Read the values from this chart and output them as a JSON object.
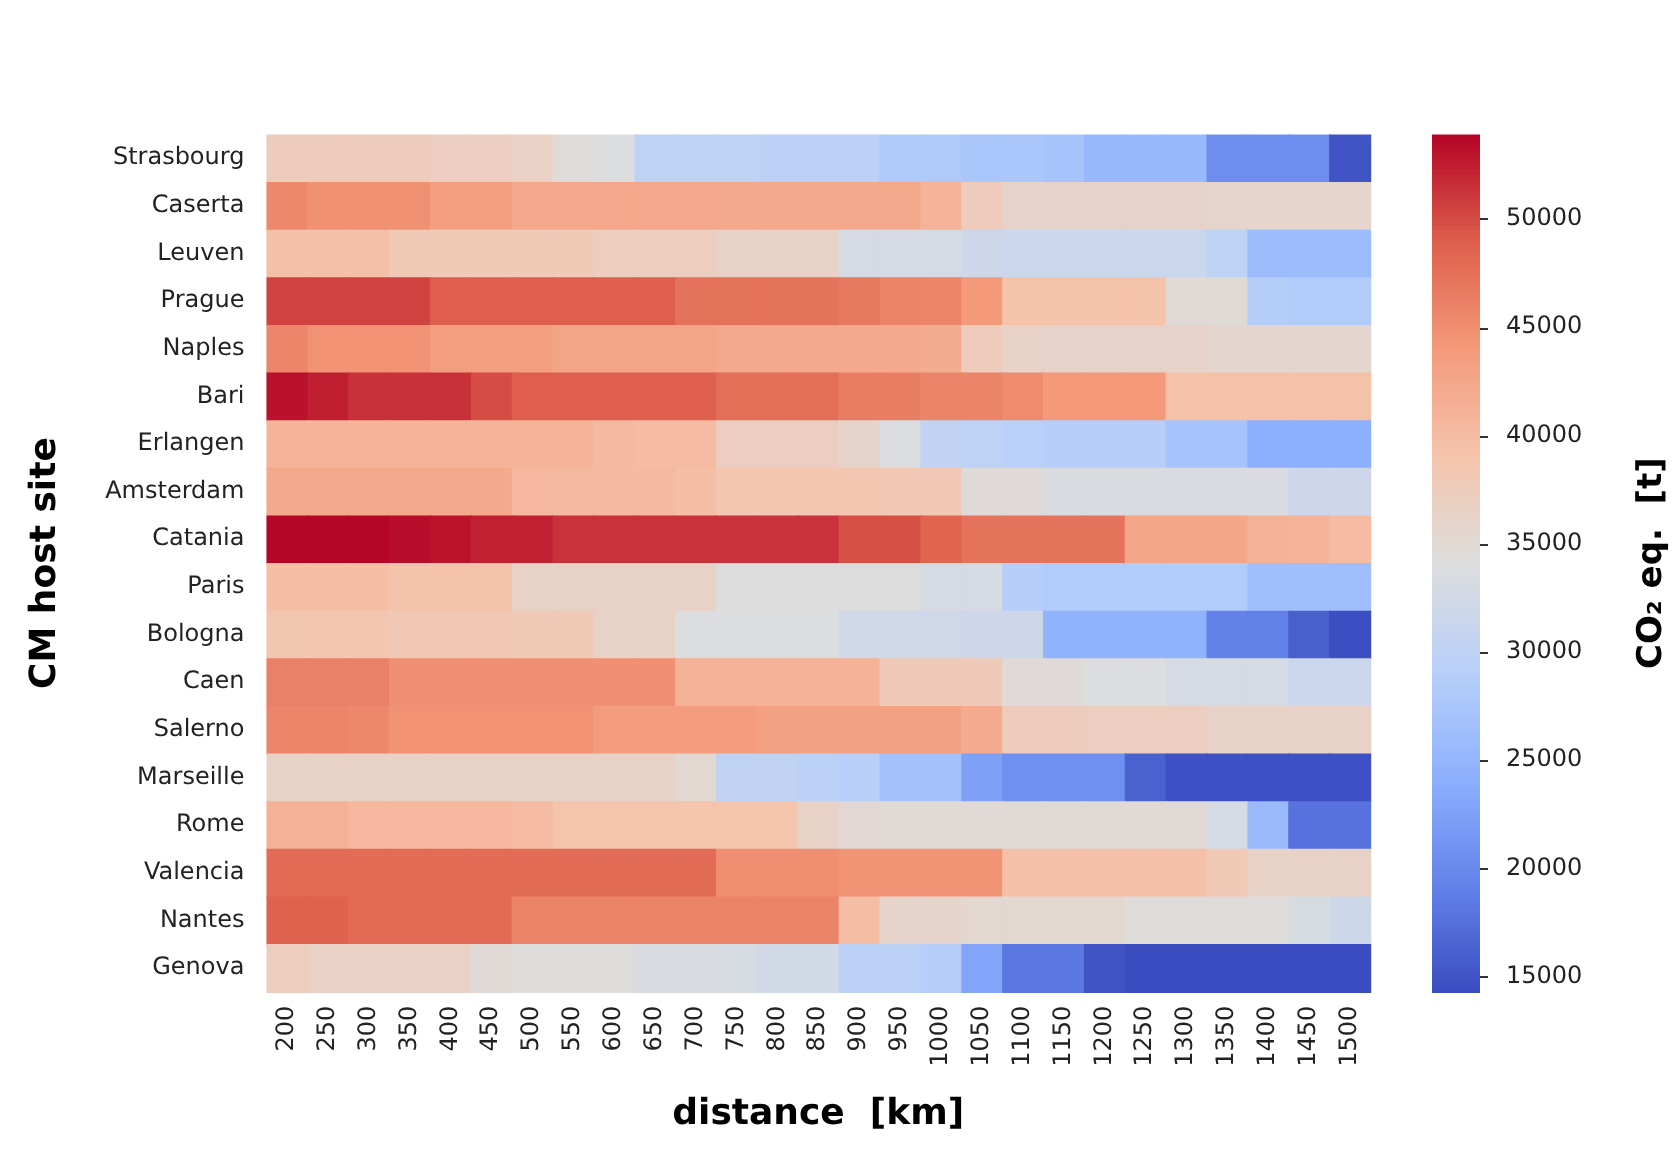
{
  "chart_data": {
    "type": "heatmap",
    "xlabel": "distance  [km]",
    "ylabel": "CM host site",
    "clabel": "CO₂ eq.  [t]",
    "categories": [
      "200",
      "250",
      "300",
      "350",
      "400",
      "450",
      "500",
      "550",
      "600",
      "650",
      "700",
      "750",
      "800",
      "850",
      "900",
      "950",
      "1000",
      "1050",
      "1100",
      "1150",
      "1200",
      "1250",
      "1300",
      "1350",
      "1400",
      "1450",
      "1500"
    ],
    "y_categories": [
      "Strasbourg",
      "Caserta",
      "Leuven",
      "Prague",
      "Naples",
      "Bari",
      "Erlangen",
      "Amsterdam",
      "Catania",
      "Paris",
      "Bologna",
      "Caen",
      "Salerno",
      "Marseille",
      "Rome",
      "Valencia",
      "Nantes",
      "Genova"
    ],
    "clim": [
      14300,
      53900
    ],
    "cticks": [
      15000,
      20000,
      25000,
      30000,
      35000,
      40000,
      45000,
      50000
    ],
    "cells": [
      [
        37500,
        37500,
        37500,
        37500,
        37000,
        37000,
        36500,
        34500,
        34000,
        30000,
        30000,
        30000,
        29700,
        29700,
        29700,
        28000,
        28000,
        27600,
        27600,
        27200,
        25500,
        25500,
        25500,
        20500,
        20500,
        20500,
        15000
      ],
      [
        45500,
        44800,
        44800,
        44800,
        43500,
        43500,
        42500,
        42500,
        42500,
        42500,
        42500,
        42300,
        42300,
        42300,
        42300,
        42300,
        41000,
        37700,
        36200,
        36200,
        36200,
        36200,
        36200,
        35700,
        35700,
        35700,
        35700
      ],
      [
        39500,
        39500,
        39500,
        38000,
        38000,
        38000,
        38000,
        38000,
        37300,
        37300,
        37300,
        36400,
        36400,
        36400,
        33000,
        33000,
        33000,
        32000,
        31600,
        31600,
        31600,
        31600,
        31600,
        30000,
        26000,
        26000,
        26000
      ],
      [
        50500,
        50500,
        50500,
        50500,
        49000,
        49000,
        49000,
        49000,
        49000,
        49000,
        47500,
        47500,
        47300,
        47300,
        46800,
        46000,
        45800,
        44000,
        39300,
        39300,
        39300,
        39300,
        34700,
        34700,
        28700,
        28300,
        28300
      ],
      [
        45800,
        44700,
        44700,
        44700,
        43500,
        43500,
        43500,
        42700,
        42700,
        42700,
        42700,
        42200,
        42200,
        42200,
        42200,
        42200,
        41900,
        37600,
        36300,
        36200,
        36200,
        36200,
        36200,
        35600,
        35600,
        35600,
        35600
      ],
      [
        53200,
        52500,
        51500,
        51500,
        51500,
        50000,
        49000,
        49000,
        49000,
        49000,
        49000,
        47700,
        47700,
        47700,
        46500,
        46500,
        45900,
        45900,
        45200,
        44000,
        44000,
        44000,
        39400,
        39400,
        39400,
        39400,
        39400
      ],
      [
        41000,
        41000,
        41000,
        41000,
        40900,
        40900,
        40900,
        40900,
        40400,
        40000,
        40000,
        37000,
        37000,
        37000,
        36000,
        33700,
        30200,
        29800,
        29300,
        28900,
        28900,
        28900,
        27200,
        27200,
        24100,
        24100,
        24100
      ],
      [
        42300,
        42300,
        42300,
        42300,
        42300,
        42300,
        40500,
        40300,
        40300,
        40300,
        39800,
        38600,
        38600,
        38600,
        38600,
        38200,
        38200,
        34600,
        34600,
        33500,
        33500,
        33500,
        33500,
        33500,
        33500,
        32000,
        32000
      ],
      [
        53800,
        53800,
        53800,
        53400,
        53100,
        52400,
        52400,
        51400,
        51400,
        51400,
        51400,
        51400,
        51400,
        51400,
        49800,
        49800,
        48600,
        47300,
        47300,
        47300,
        47300,
        42600,
        42600,
        42600,
        41300,
        40900,
        40000
      ],
      [
        39800,
        39800,
        39800,
        39200,
        39200,
        39200,
        36400,
        36400,
        36400,
        36400,
        36400,
        34200,
        34200,
        34200,
        34200,
        34200,
        33000,
        33000,
        28900,
        28400,
        28400,
        28400,
        28400,
        28400,
        26400,
        26400,
        26400
      ],
      [
        38500,
        38600,
        38600,
        38200,
        38200,
        38200,
        38000,
        38000,
        36400,
        36400,
        34000,
        34000,
        34000,
        34000,
        32200,
        32200,
        32200,
        32000,
        32000,
        24600,
        24600,
        24600,
        24600,
        19300,
        19300,
        16000,
        14500
      ],
      [
        46200,
        46200,
        46200,
        44900,
        44900,
        44900,
        44900,
        44900,
        44900,
        44900,
        41200,
        41200,
        41200,
        41200,
        41200,
        37800,
        37800,
        37800,
        34600,
        34600,
        34000,
        34000,
        33000,
        33000,
        33000,
        31600,
        31600
      ],
      [
        45800,
        45800,
        45500,
        44700,
        44700,
        44700,
        44700,
        44700,
        43700,
        43700,
        43700,
        43700,
        43300,
        43300,
        43300,
        43300,
        43300,
        42000,
        37400,
        37400,
        37100,
        37100,
        37100,
        36300,
        36300,
        36300,
        36300
      ],
      [
        36300,
        36300,
        36300,
        36300,
        36300,
        36300,
        36300,
        36300,
        36300,
        36300,
        35300,
        30300,
        30300,
        29700,
        29200,
        26900,
        26900,
        22500,
        20800,
        20800,
        20800,
        16200,
        14700,
        14700,
        14700,
        14700,
        14700
      ],
      [
        41300,
        41300,
        40600,
        40600,
        40600,
        40600,
        40100,
        39000,
        39000,
        39000,
        39000,
        39000,
        39000,
        36400,
        35200,
        34800,
        34800,
        34800,
        34800,
        34800,
        34800,
        34800,
        34800,
        33000,
        25800,
        17800,
        17800
      ],
      [
        47900,
        47900,
        47900,
        47900,
        47900,
        47900,
        47900,
        47900,
        47900,
        47900,
        47900,
        45000,
        45000,
        45000,
        44600,
        44600,
        44600,
        44600,
        39500,
        39500,
        39500,
        39500,
        39500,
        38000,
        36300,
        36300,
        36300
      ],
      [
        48800,
        48800,
        48000,
        48000,
        48000,
        48000,
        46000,
        46000,
        46000,
        46000,
        46000,
        46000,
        46000,
        46000,
        39900,
        35900,
        35900,
        35300,
        35300,
        35300,
        35300,
        34500,
        34500,
        34500,
        34500,
        33200,
        31800
      ],
      [
        37300,
        36500,
        36500,
        36500,
        36500,
        34700,
        34300,
        34300,
        34300,
        33500,
        33500,
        33200,
        32500,
        32500,
        29700,
        29700,
        28900,
        23000,
        18300,
        18300,
        15000,
        14300,
        14300,
        14300,
        14300,
        14300,
        14300
      ]
    ]
  }
}
